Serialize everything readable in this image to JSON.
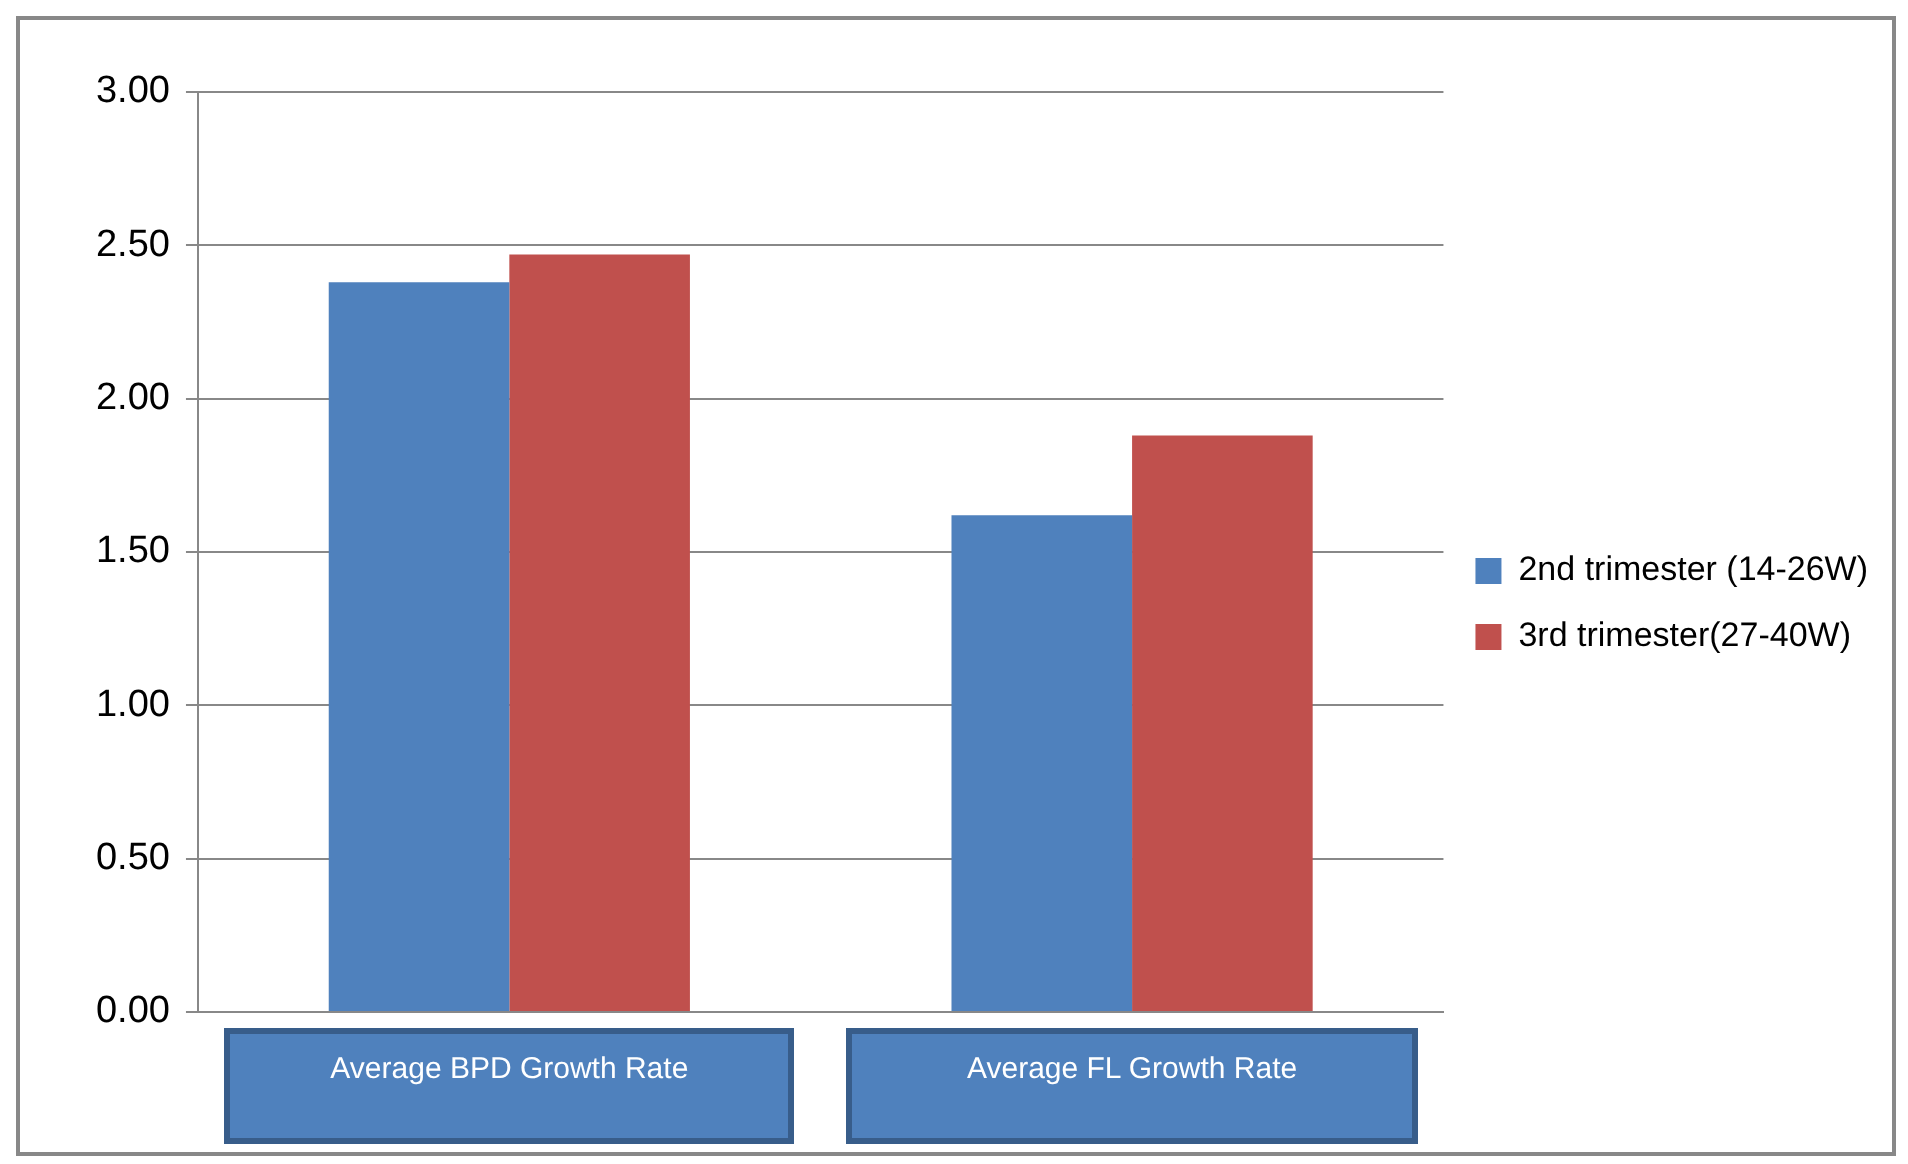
{
  "chart_data": {
    "type": "bar",
    "categories": [
      "Average BPD Growth Rate",
      "Average FL Growth Rate"
    ],
    "series": [
      {
        "name": "2nd trimester (14-26W)",
        "color": "#4f81bd",
        "values": [
          2.38,
          1.62
        ]
      },
      {
        "name": "3rd trimester(27-40W)",
        "color": "#c0504d",
        "values": [
          2.47,
          1.88
        ]
      }
    ],
    "ylim": [
      0,
      3
    ],
    "yticks": [
      {
        "value": 0,
        "label": "0.00"
      },
      {
        "value": 0.5,
        "label": "0.50"
      },
      {
        "value": 1,
        "label": "1.00"
      },
      {
        "value": 1.5,
        "label": "1.50"
      },
      {
        "value": 2,
        "label": "2.00"
      },
      {
        "value": 2.5,
        "label": "2.50"
      },
      {
        "value": 3,
        "label": "3.00"
      }
    ],
    "grid": "y",
    "legend": "right"
  }
}
